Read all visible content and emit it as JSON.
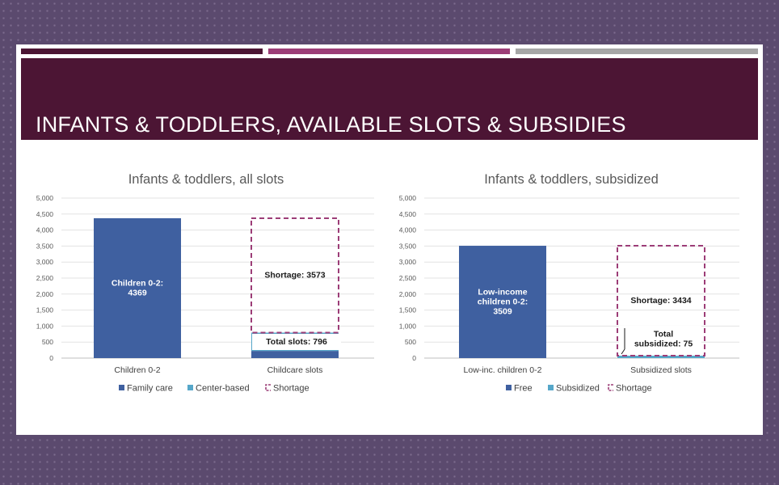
{
  "slide": {
    "title": "INFANTS & TODDLERS, AVAILABLE SLOTS & SUBSIDIES"
  },
  "colors": {
    "banner": "#4c1534",
    "stripe_1": "#4c1534",
    "stripe_2": "#9c3d77",
    "stripe_3": "#a6a6a6",
    "dark_blue": "#3f60a0",
    "light_blue": "#56a7c9",
    "shortage": "#9c3d77"
  },
  "chart_data": [
    {
      "type": "bar",
      "stacked": true,
      "title": "Infants & toddlers, all slots",
      "categories": [
        "Children 0-2",
        "Childcare slots"
      ],
      "series": [
        {
          "name": "Family care",
          "values": [
            4369,
            224
          ]
        },
        {
          "name": "Center-based",
          "values": [
            0,
            572
          ]
        },
        {
          "name": "Shortage",
          "values": [
            0,
            3573
          ]
        }
      ],
      "data_labels": [
        "Children 0-2:\n4369",
        "Total slots: 796",
        "Shortage: 3573"
      ],
      "yticks": [
        "0",
        "500",
        "1,000",
        "1,500",
        "2,000",
        "2,500",
        "3,000",
        "3,500",
        "4,000",
        "4,500",
        "5,000"
      ],
      "ylim": [
        0,
        5000
      ],
      "grid": true,
      "legend": "bottom"
    },
    {
      "type": "bar",
      "stacked": true,
      "title": "Infants & toddlers, subsidized",
      "categories": [
        "Low-inc. children 0-2",
        "Subsidized slots"
      ],
      "series": [
        {
          "name": "Free",
          "values": [
            3509,
            0
          ]
        },
        {
          "name": "Subsidized",
          "values": [
            0,
            75
          ]
        },
        {
          "name": "Shortage",
          "values": [
            0,
            3434
          ]
        }
      ],
      "data_labels": [
        "Low-income\nchildren 0-2:\n3509",
        "Total\nsubsidized: 75",
        "Shortage: 3434"
      ],
      "yticks": [
        "0",
        "500",
        "1,000",
        "1,500",
        "2,000",
        "2,500",
        "3,000",
        "3,500",
        "4,000",
        "4,500",
        "5,000"
      ],
      "ylim": [
        0,
        5000
      ],
      "grid": true,
      "legend": "bottom"
    }
  ]
}
